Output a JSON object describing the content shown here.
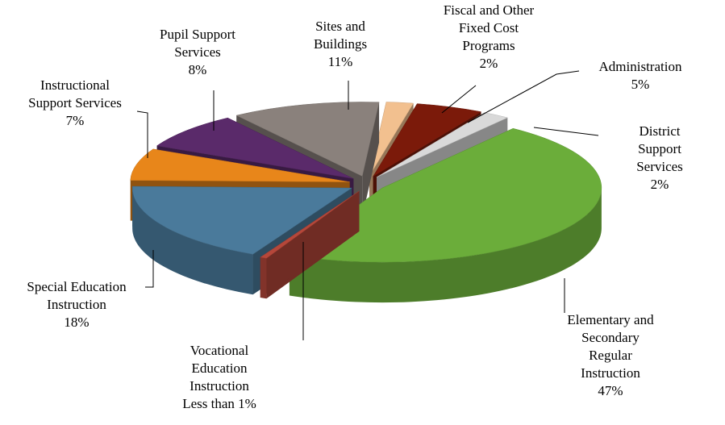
{
  "chart_data": {
    "type": "pie3d",
    "categories": [
      "Sites and\nBuildings",
      "Fiscal and Other\nFixed Cost\nPrograms",
      "Administration",
      "District Support\nServices",
      "Elementary and\nSecondary\nRegular\nInstruction",
      "Vocational\nEducation\nInstruction",
      "Special Education\nInstruction",
      "Instructional\nSupport Services",
      "Pupil Support\nServices"
    ],
    "values": [
      11,
      2,
      5,
      2,
      47,
      0.5,
      18,
      7,
      8
    ],
    "value_labels": [
      "11%",
      "2%",
      "5%",
      "2%",
      "47%",
      "Less than 1%",
      "18%",
      "7%",
      "8%"
    ],
    "colors": [
      "#8a817c",
      "#f2c08f",
      "#7b1a0a",
      "#d9d9d9",
      "#6bad3a",
      "#b5473a",
      "#4a7a9b",
      "#e8861a",
      "#5a2a6a"
    ]
  }
}
